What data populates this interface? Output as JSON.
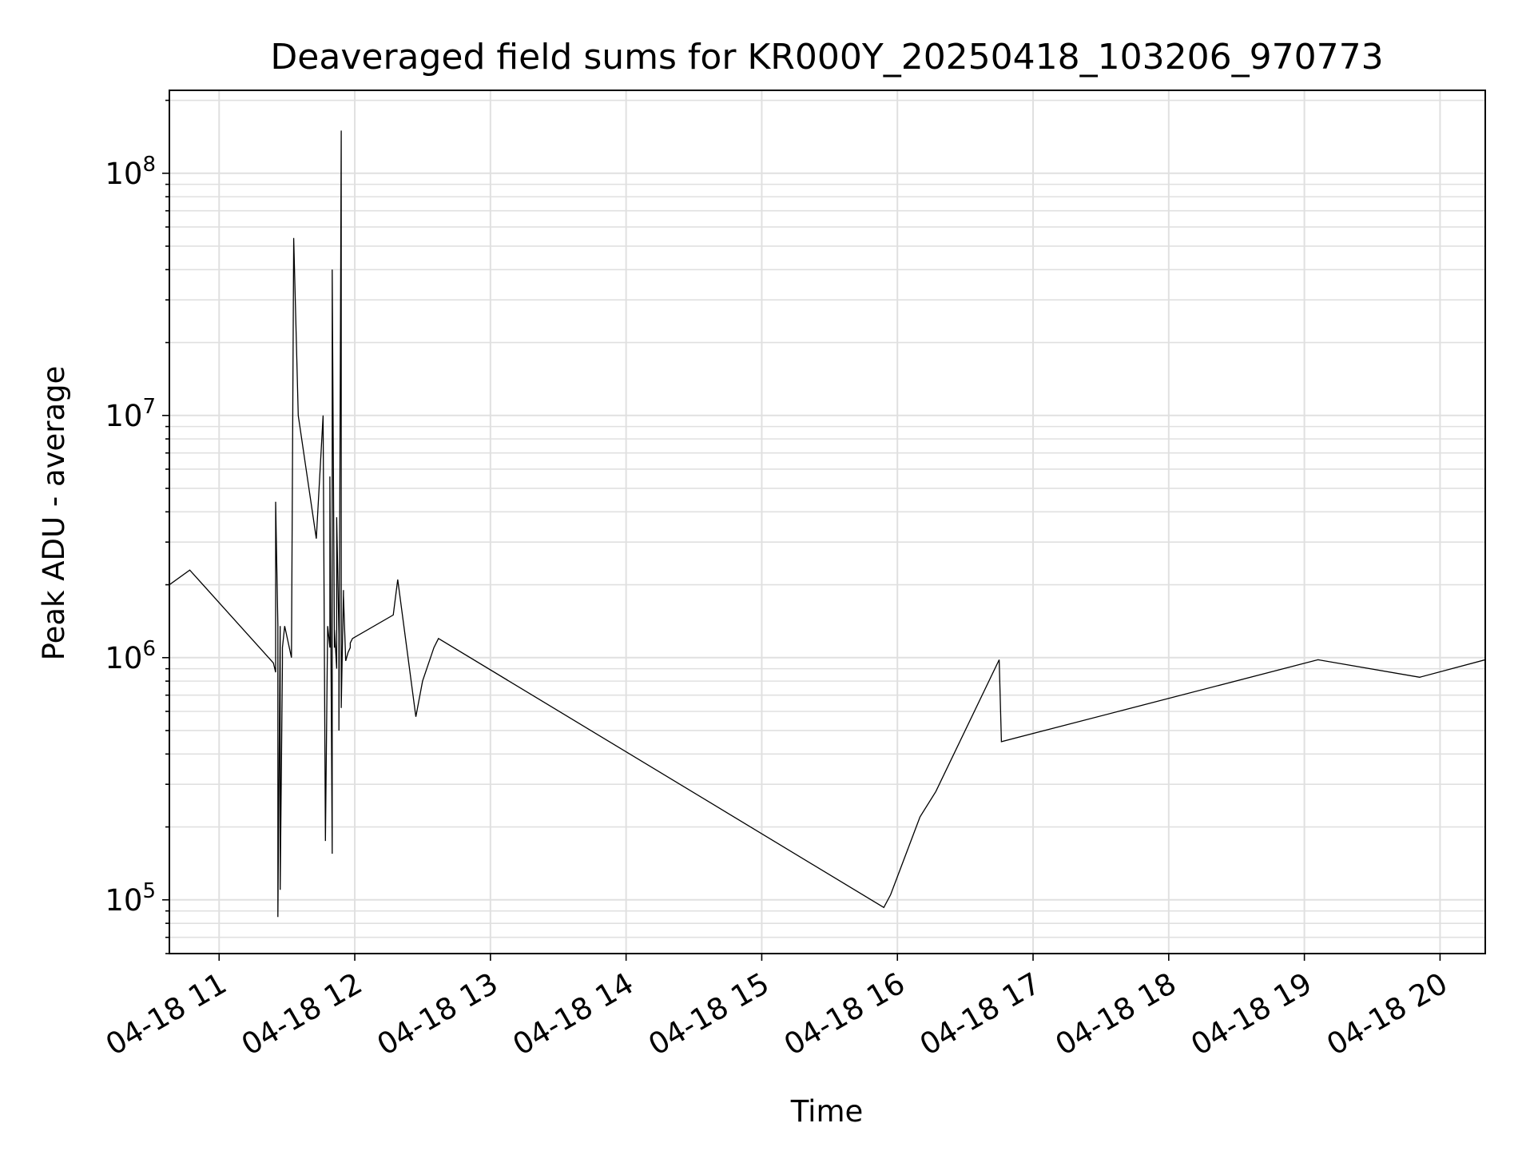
{
  "chart_data": {
    "type": "line",
    "title": "Deaveraged field sums for KR000Y_20250418_103206_970773",
    "xlabel": "Time",
    "ylabel": "Peak ADU - average",
    "yscale": "log",
    "xlim": [
      "04-18 10:38",
      "04-18 20:20"
    ],
    "ylim": [
      60000,
      220000000
    ],
    "grid": true,
    "legend": "none",
    "x_ticks": [
      "04-18 11",
      "04-18 12",
      "04-18 13",
      "04-18 14",
      "04-18 15",
      "04-18 16",
      "04-18 17",
      "04-18 18",
      "04-18 19",
      "04-18 20"
    ],
    "y_ticks": [
      {
        "value": 100000,
        "base": "10",
        "exp": "5"
      },
      {
        "value": 1000000,
        "base": "10",
        "exp": "6"
      },
      {
        "value": 10000000,
        "base": "10",
        "exp": "7"
      },
      {
        "value": 100000000,
        "base": "10",
        "exp": "8"
      }
    ],
    "line_color": "#000000",
    "grid_color": "#e0e0e0",
    "series": [
      {
        "x": [
          "04-18 10:38",
          "04-18 10:47",
          "04-18 11:24",
          "04-18 11:25",
          "04-18 11:25",
          "04-18 11:26",
          "04-18 11:26",
          "04-18 11:27",
          "04-18 11:27",
          "04-18 11:28",
          "04-18 11:28",
          "04-18 11:29",
          "04-18 11:32",
          "04-18 11:33",
          "04-18 11:35",
          "04-18 11:43",
          "04-18 11:46",
          "04-18 11:47",
          "04-18 11:48",
          "04-18 11:49",
          "04-18 11:49",
          "04-18 11:50",
          "04-18 11:50",
          "04-18 11:51",
          "04-18 11:51",
          "04-18 11:52",
          "04-18 11:52",
          "04-18 11:53",
          "04-18 11:53",
          "04-18 11:54",
          "04-18 11:54",
          "04-18 11:55",
          "04-18 11:55",
          "04-18 11:56",
          "04-18 11:57",
          "04-18 11:57",
          "04-18 11:58",
          "04-18 11:58",
          "04-18 11:59",
          "04-18 12:17",
          "04-18 12:19",
          "04-18 12:27",
          "04-18 12:30",
          "04-18 12:35",
          "04-18 12:37",
          "04-18 15:54",
          "04-18 15:57",
          "04-18 16:10",
          "04-18 16:17",
          "04-18 16:45",
          "04-18 16:46",
          "04-18 19:06",
          "04-18 19:51",
          "04-18 20:20",
          "04-18 20:20"
        ],
        "y": [
          2000000,
          2300000,
          950000,
          870000,
          4400000,
          1350000,
          85000,
          1350000,
          110000,
          950000,
          1100000,
          1350000,
          1000000,
          54000000,
          10000000,
          3100000,
          10000000,
          175000,
          1350000,
          1100000,
          5600000,
          155000,
          40000000,
          1100000,
          1300000,
          900000,
          3800000,
          1250000,
          500000,
          150000000,
          620000,
          1900000,
          1800000,
          970000,
          1050000,
          1050000,
          1100000,
          1150000,
          1200000,
          1500000,
          2100000,
          570000,
          800000,
          1100000,
          1200000,
          93000,
          105000,
          220000,
          280000,
          980000,
          450000,
          980000,
          830000,
          980000,
          1060000
        ]
      }
    ]
  }
}
